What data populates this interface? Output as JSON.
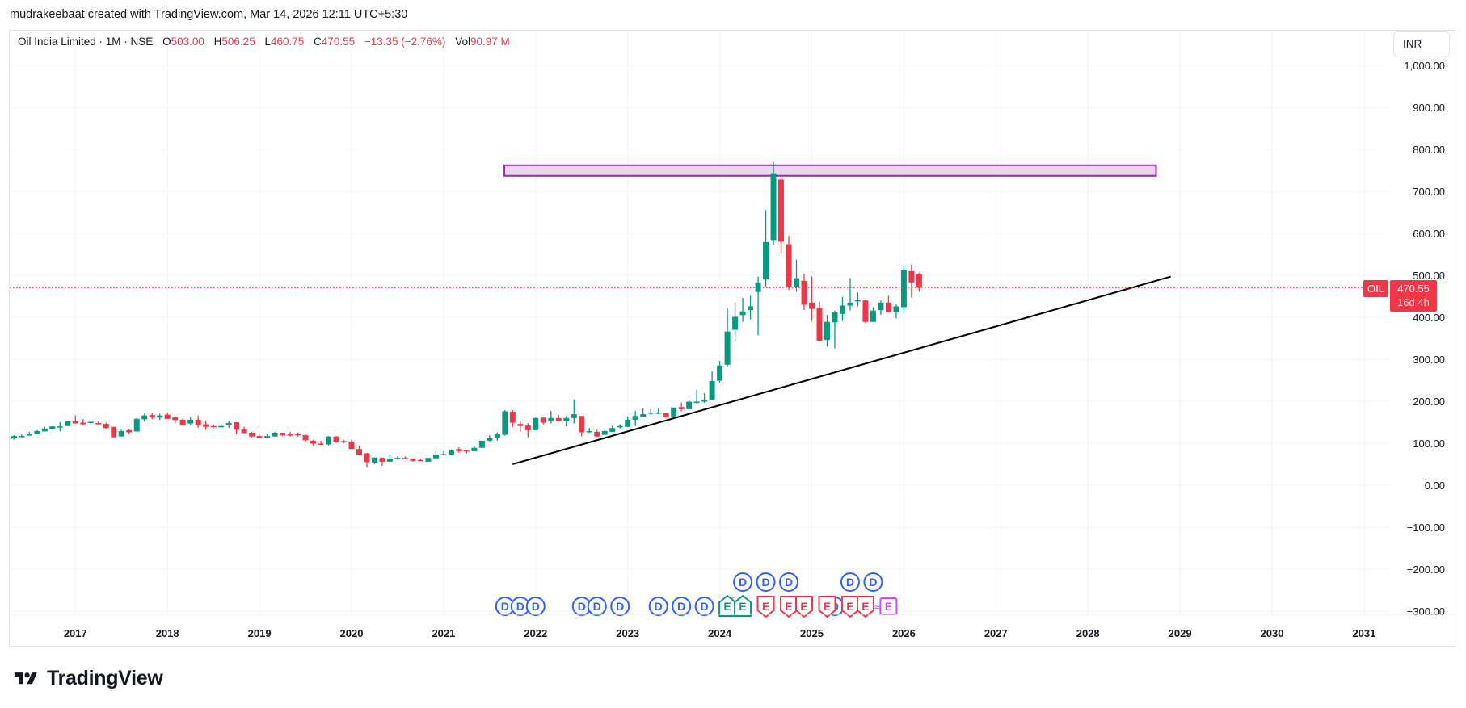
{
  "caption": "mudrakeebaat created with TradingView.com, Mar 14, 2026 12:11 UTC+5:30",
  "legend": {
    "symbol": "Oil India Limited · 1M · NSE",
    "open_label": "O",
    "open": "503.00",
    "high_label": "H",
    "high": "506.25",
    "low_label": "L",
    "low": "460.75",
    "close_label": "C",
    "close": "470.55",
    "change": "−13.35 (−2.76%)",
    "vol_label": "Vol",
    "volume": "90.97 M"
  },
  "currency": "INR",
  "price_tag": {
    "ticker": "OIL",
    "price": "470.55",
    "countdown": "16d 4h"
  },
  "logo": {
    "text": "TradingView"
  },
  "colors": {
    "up": "#089981",
    "down": "#f23645",
    "grid": "#f0f3fa",
    "zone": "#9c27b0",
    "zone_fill": "#e9d5f0",
    "dividend": "#2962ff",
    "earnings_future": "#e040fb"
  },
  "chart_data": {
    "type": "candlestick",
    "interval": "1M",
    "y_ticks": [
      "1,000.00",
      "900.00",
      "800.00",
      "700.00",
      "600.00",
      "500.00",
      "400.00",
      "300.00",
      "200.00",
      "100.00",
      "0.00",
      "−100.00",
      "−200.00",
      "−300.00"
    ],
    "y_tick_values": [
      1000,
      900,
      800,
      700,
      600,
      500,
      400,
      300,
      200,
      100,
      0,
      -100,
      -200,
      -300
    ],
    "x_ticks": [
      "2017",
      "2018",
      "2019",
      "2020",
      "2021",
      "2022",
      "2023",
      "2024",
      "2025",
      "2026",
      "2027",
      "2028",
      "2029",
      "2030",
      "2031"
    ],
    "last_price": 470.55,
    "candles_fields": [
      "date",
      "open",
      "high",
      "low",
      "close"
    ],
    "candles": [
      [
        "2016-05",
        111,
        119,
        108,
        117
      ],
      [
        "2016-06",
        117,
        121,
        116,
        117
      ],
      [
        "2016-07",
        118,
        127,
        118,
        123
      ],
      [
        "2016-08",
        123,
        131,
        122,
        129
      ],
      [
        "2016-09",
        128,
        139,
        128,
        135
      ],
      [
        "2016-10",
        134,
        140,
        134,
        140
      ],
      [
        "2016-11",
        139,
        150,
        128,
        140
      ],
      [
        "2016-12",
        141,
        152,
        141,
        152
      ],
      [
        "2017-01",
        152,
        166,
        147,
        147
      ],
      [
        "2017-02",
        149,
        158,
        143,
        145
      ],
      [
        "2017-03",
        149,
        153,
        145,
        151
      ],
      [
        "2017-04",
        148,
        152,
        145,
        145
      ],
      [
        "2017-05",
        146,
        149,
        134,
        136
      ],
      [
        "2017-06",
        139,
        139,
        114,
        114
      ],
      [
        "2017-07",
        116,
        132,
        116,
        129
      ],
      [
        "2017-08",
        131,
        134,
        122,
        126
      ],
      [
        "2017-09",
        128,
        160,
        128,
        158
      ],
      [
        "2017-10",
        157,
        170,
        152,
        166
      ],
      [
        "2017-11",
        167,
        171,
        157,
        161
      ],
      [
        "2017-12",
        161,
        170,
        155,
        166
      ],
      [
        "2018-01",
        168,
        172,
        158,
        158
      ],
      [
        "2018-02",
        162,
        164,
        147,
        155
      ],
      [
        "2018-03",
        156,
        158,
        143,
        143
      ],
      [
        "2018-04",
        147,
        162,
        143,
        156
      ],
      [
        "2018-05",
        156,
        166,
        137,
        143
      ],
      [
        "2018-06",
        145,
        154,
        132,
        139
      ],
      [
        "2018-07",
        141,
        144,
        138,
        139
      ],
      [
        "2018-08",
        138,
        145,
        138,
        141
      ],
      [
        "2018-09",
        144,
        153,
        136,
        148
      ],
      [
        "2018-10",
        150,
        150,
        122,
        132
      ],
      [
        "2018-11",
        133,
        139,
        124,
        124
      ],
      [
        "2018-12",
        125,
        127,
        114,
        116
      ],
      [
        "2019-01",
        117,
        119,
        112,
        113
      ],
      [
        "2019-02",
        113,
        121,
        113,
        117
      ],
      [
        "2019-03",
        116,
        127,
        116,
        125
      ],
      [
        "2019-04",
        125,
        125,
        117,
        119
      ],
      [
        "2019-05",
        121,
        127,
        116,
        120
      ],
      [
        "2019-06",
        122,
        125,
        116,
        120
      ],
      [
        "2019-07",
        119,
        121,
        103,
        107
      ],
      [
        "2019-08",
        106,
        108,
        95,
        99
      ],
      [
        "2019-09",
        99,
        106,
        97,
        97
      ],
      [
        "2019-10",
        97,
        117,
        95,
        116
      ],
      [
        "2019-11",
        116,
        117,
        101,
        103
      ],
      [
        "2019-12",
        105,
        108,
        100,
        103
      ],
      [
        "2020-01",
        104,
        108,
        86,
        86
      ],
      [
        "2020-02",
        86,
        95,
        71,
        72
      ],
      [
        "2020-03",
        76,
        77,
        42,
        55
      ],
      [
        "2020-04",
        54,
        66,
        50,
        66
      ],
      [
        "2020-05",
        65,
        66,
        46,
        56
      ],
      [
        "2020-06",
        56,
        73,
        56,
        63
      ],
      [
        "2020-07",
        63,
        69,
        61,
        65
      ],
      [
        "2020-08",
        65,
        69,
        63,
        64
      ],
      [
        "2020-09",
        63,
        64,
        56,
        58
      ],
      [
        "2020-10",
        60,
        63,
        58,
        59
      ],
      [
        "2020-11",
        56,
        65,
        56,
        65
      ],
      [
        "2020-12",
        64,
        81,
        64,
        73
      ],
      [
        "2021-01",
        73,
        81,
        73,
        74
      ],
      [
        "2021-02",
        73,
        85,
        73,
        84
      ],
      [
        "2021-03",
        86,
        90,
        77,
        81
      ],
      [
        "2021-04",
        83,
        84,
        76,
        81
      ],
      [
        "2021-05",
        81,
        93,
        81,
        89
      ],
      [
        "2021-06",
        89,
        106,
        89,
        106
      ],
      [
        "2021-07",
        106,
        119,
        103,
        112
      ],
      [
        "2021-08",
        113,
        126,
        106,
        123
      ],
      [
        "2021-09",
        120,
        179,
        118,
        176
      ],
      [
        "2021-10",
        175,
        179,
        138,
        149
      ],
      [
        "2021-11",
        146,
        154,
        127,
        141
      ],
      [
        "2021-12",
        142,
        148,
        114,
        131
      ],
      [
        "2022-01",
        131,
        161,
        130,
        160
      ],
      [
        "2022-02",
        161,
        161,
        145,
        149
      ],
      [
        "2022-03",
        154,
        177,
        147,
        160
      ],
      [
        "2022-04",
        160,
        167,
        153,
        153
      ],
      [
        "2022-05",
        153,
        165,
        140,
        160
      ],
      [
        "2022-06",
        160,
        204,
        147,
        169
      ],
      [
        "2022-07",
        165,
        165,
        116,
        126
      ],
      [
        "2022-08",
        126,
        136,
        124,
        129
      ],
      [
        "2022-09",
        127,
        132,
        115,
        116
      ],
      [
        "2022-10",
        120,
        131,
        120,
        129
      ],
      [
        "2022-11",
        127,
        142,
        127,
        136
      ],
      [
        "2022-12",
        138,
        145,
        135,
        141
      ],
      [
        "2023-01",
        139,
        164,
        138,
        156
      ],
      [
        "2023-02",
        156,
        177,
        141,
        165
      ],
      [
        "2023-03",
        163,
        183,
        163,
        169
      ],
      [
        "2023-04",
        171,
        181,
        168,
        173
      ],
      [
        "2023-05",
        172,
        183,
        169,
        173
      ],
      [
        "2023-06",
        171,
        173,
        161,
        162
      ],
      [
        "2023-07",
        164,
        185,
        163,
        185
      ],
      [
        "2023-08",
        186,
        197,
        176,
        181
      ],
      [
        "2023-09",
        181,
        204,
        180,
        199
      ],
      [
        "2023-10",
        196,
        227,
        194,
        199
      ],
      [
        "2023-11",
        199,
        219,
        196,
        204
      ],
      [
        "2023-12",
        204,
        271,
        204,
        248
      ],
      [
        "2024-01",
        249,
        296,
        244,
        285
      ],
      [
        "2024-02",
        287,
        422,
        283,
        366
      ],
      [
        "2024-03",
        370,
        434,
        343,
        401
      ],
      [
        "2024-04",
        405,
        446,
        389,
        414
      ],
      [
        "2024-05",
        417,
        451,
        395,
        426
      ],
      [
        "2024-06",
        460,
        497,
        357,
        483
      ],
      [
        "2024-07",
        490,
        655,
        472,
        579
      ],
      [
        "2024-08",
        584,
        770,
        571,
        743
      ],
      [
        "2024-09",
        728,
        735,
        554,
        580
      ],
      [
        "2024-10",
        574,
        594,
        465,
        472
      ],
      [
        "2024-11",
        472,
        537,
        461,
        493
      ],
      [
        "2024-12",
        487,
        504,
        417,
        430
      ],
      [
        "2025-01",
        435,
        497,
        391,
        420
      ],
      [
        "2025-02",
        422,
        437,
        344,
        344
      ],
      [
        "2025-03",
        346,
        406,
        330,
        389
      ],
      [
        "2025-04",
        388,
        416,
        326,
        412
      ],
      [
        "2025-05",
        408,
        449,
        391,
        428
      ],
      [
        "2025-06",
        428,
        493,
        416,
        435
      ],
      [
        "2025-07",
        438,
        459,
        426,
        441
      ],
      [
        "2025-08",
        440,
        442,
        386,
        389
      ],
      [
        "2025-09",
        389,
        424,
        389,
        416
      ],
      [
        "2025-10",
        417,
        440,
        406,
        435
      ],
      [
        "2025-11",
        435,
        451,
        412,
        412
      ],
      [
        "2025-12",
        412,
        431,
        397,
        426
      ],
      [
        "2026-01",
        424,
        522,
        409,
        512
      ],
      [
        "2026-02",
        510,
        526,
        447,
        483
      ],
      [
        "2026-03",
        503,
        506.25,
        460.75,
        470.55
      ]
    ],
    "drawings": {
      "trendline": {
        "from": [
          2021.75,
          50
        ],
        "to": [
          2028.9,
          497
        ]
      },
      "zone": {
        "time": [
          2021.66,
          2028.74
        ],
        "price": [
          737,
          762
        ]
      }
    },
    "events": [
      {
        "type": "dividend",
        "date": "2021-09",
        "row": 0,
        "label": "D"
      },
      {
        "type": "dividend",
        "date": "2021-11",
        "row": 0,
        "label": "D"
      },
      {
        "type": "dividend",
        "date": "2022-01",
        "row": 0,
        "label": "D"
      },
      {
        "type": "dividend",
        "date": "2022-07",
        "row": 0,
        "label": "D"
      },
      {
        "type": "dividend",
        "date": "2022-09",
        "row": 0,
        "label": "D"
      },
      {
        "type": "dividend",
        "date": "2022-12",
        "row": 0,
        "label": "D"
      },
      {
        "type": "dividend",
        "date": "2023-05",
        "row": 0,
        "label": "D"
      },
      {
        "type": "dividend",
        "date": "2023-08",
        "row": 0,
        "label": "D"
      },
      {
        "type": "dividend",
        "date": "2023-11",
        "row": 0,
        "label": "D"
      },
      {
        "type": "split",
        "date": "2024-03",
        "row": 0,
        "label": ""
      },
      {
        "type": "dividend",
        "date": "2025-04",
        "row": 0,
        "label": "D"
      },
      {
        "type": "earnings_beat",
        "date": "2024-02",
        "row": 0,
        "label": "E"
      },
      {
        "type": "earnings_beat",
        "date": "2024-04",
        "row": 0,
        "label": "E"
      },
      {
        "type": "earnings_miss",
        "date": "2024-07",
        "row": 0,
        "label": "E"
      },
      {
        "type": "earnings_miss",
        "date": "2024-10",
        "row": 0,
        "label": "E"
      },
      {
        "type": "earnings_miss",
        "date": "2024-12",
        "row": 0,
        "label": "E"
      },
      {
        "type": "earnings_miss",
        "date": "2025-03",
        "row": 0,
        "label": "E"
      },
      {
        "type": "earnings_miss",
        "date": "2025-06",
        "row": 0,
        "label": "E"
      },
      {
        "type": "earnings_miss",
        "date": "2025-08",
        "row": 0,
        "label": "E"
      },
      {
        "type": "earnings_future",
        "date": "2025-11",
        "row": 0,
        "label": "E",
        "prefix": "≈"
      },
      {
        "type": "dividend",
        "date": "2024-04",
        "row": 1,
        "label": "D"
      },
      {
        "type": "dividend",
        "date": "2024-07",
        "row": 1,
        "label": "D"
      },
      {
        "type": "dividend",
        "date": "2024-10",
        "row": 1,
        "label": "D"
      },
      {
        "type": "dividend",
        "date": "2025-06",
        "row": 1,
        "label": "D"
      },
      {
        "type": "dividend",
        "date": "2025-09",
        "row": 1,
        "label": "D"
      }
    ]
  }
}
